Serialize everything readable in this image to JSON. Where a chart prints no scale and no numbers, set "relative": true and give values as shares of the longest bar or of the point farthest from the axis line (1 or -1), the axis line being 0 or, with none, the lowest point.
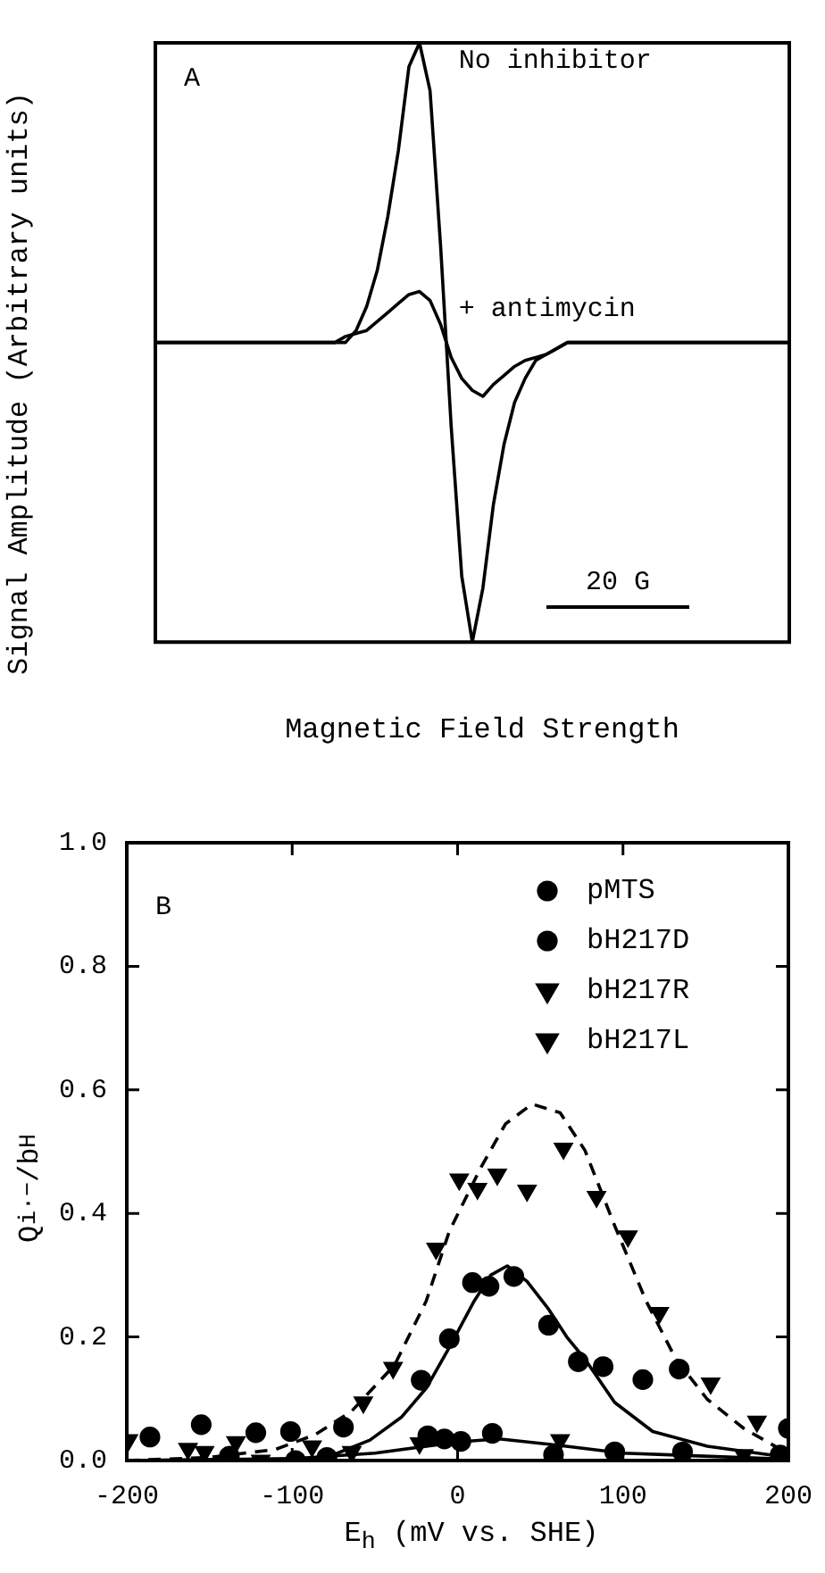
{
  "chart_data": [
    {
      "type": "line",
      "title": "A",
      "xlabel": "Magnetic Field Strength",
      "ylabel": "Signal Amplitude (Arbitrary units)",
      "relative": true,
      "marker": "none",
      "line_style": "solid",
      "annotations": [
        "20 G"
      ],
      "categories": [
        null,
        null,
        null,
        null,
        null,
        null,
        null,
        null,
        null,
        null,
        null,
        null,
        null,
        null,
        null,
        null,
        null,
        null,
        null,
        null,
        null,
        null,
        null,
        null,
        null,
        null,
        null,
        null,
        null,
        null,
        null,
        null,
        null,
        null,
        null,
        null,
        null,
        null,
        null,
        null,
        null,
        null,
        null,
        null,
        null,
        null,
        null,
        null,
        null,
        null,
        null,
        null,
        null,
        null,
        null,
        null,
        null,
        null,
        null,
        null,
        null
      ],
      "series": [
        {
          "name": "No inhibitor",
          "color": "#000000",
          "values": [
            0.5,
            0.5,
            0.5,
            0.5,
            0.5,
            0.5,
            0.5,
            0.5,
            0.5,
            0.5,
            0.5,
            0.5,
            0.5,
            0.5,
            0.5,
            0.5,
            0.5,
            0.5,
            0.5,
            0.52,
            0.56,
            0.62,
            0.71,
            0.82,
            0.96,
            1.0,
            0.92,
            0.66,
            0.36,
            0.11,
            0.0,
            0.09,
            0.23,
            0.33,
            0.4,
            0.44,
            0.47,
            0.48,
            0.49,
            0.5,
            0.5,
            0.5,
            0.5,
            0.5,
            0.5,
            0.5,
            0.5,
            0.5,
            0.5,
            0.5,
            0.5,
            0.5,
            0.5,
            0.5,
            0.5,
            0.5,
            0.5,
            0.5,
            0.5,
            0.5,
            0.5
          ]
        },
        {
          "name": "+ antimycin",
          "color": "#000000",
          "values": [
            0.5,
            0.5,
            0.5,
            0.5,
            0.5,
            0.5,
            0.5,
            0.5,
            0.5,
            0.5,
            0.5,
            0.5,
            0.5,
            0.5,
            0.5,
            0.5,
            0.5,
            0.5,
            0.51,
            0.515,
            0.52,
            0.535,
            0.55,
            0.565,
            0.58,
            0.585,
            0.57,
            0.53,
            0.475,
            0.44,
            0.42,
            0.41,
            0.43,
            0.445,
            0.46,
            0.47,
            0.475,
            0.48,
            0.49,
            0.5,
            0.5,
            0.5,
            0.5,
            0.5,
            0.5,
            0.5,
            0.5,
            0.5,
            0.5,
            0.5,
            0.5,
            0.5,
            0.5,
            0.5,
            0.5,
            0.5,
            0.5,
            0.5,
            0.5,
            0.5,
            0.5
          ]
        }
      ]
    },
    {
      "type": "scatter",
      "title": "B",
      "xlabel": "E$_{h}$ (mV vs. SHE)",
      "ylabel": "Q$_{i}$$^{·−}$/b$_{H}$",
      "legend": "top right",
      "xlim": [
        -200,
        200
      ],
      "xticks": [
        -200,
        -100,
        0,
        100,
        200
      ],
      "ylim": [
        0,
        1
      ],
      "yticks": [
        {
          "value": 0,
          "label": "0.0"
        },
        0.2,
        0.4,
        0.6,
        0.8,
        {
          "value": 1,
          "label": "1.0"
        }
      ],
      "series": [
        {
          "name": "pMTS",
          "color": "#000000",
          "marker": "circle",
          "x": [
            -155,
            -122,
            -101,
            -69,
            -22,
            -5,
            9,
            19,
            34,
            55,
            73,
            88,
            112,
            134,
            200
          ],
          "values": [
            0.058,
            0.045,
            0.047,
            0.054,
            0.13,
            0.197,
            0.288,
            0.282,
            0.298,
            0.219,
            0.16,
            0.152,
            0.131,
            0.148,
            0.052
          ]
        },
        {
          "name": "bH217D",
          "color": "#000000",
          "marker": "circle",
          "x": [
            -186,
            -138,
            -98,
            -79,
            -18,
            -8,
            2,
            21,
            58,
            95,
            136,
            195
          ],
          "values": [
            0.038,
            0.007,
            0,
            0.005,
            0.04,
            0.035,
            0.031,
            0.044,
            0.009,
            0.014,
            0.014,
            0.009
          ]
        },
        {
          "name": "bH217R",
          "color": "#000000",
          "marker": "triangle",
          "x": [
            -163,
            -153,
            -88,
            -57,
            -39,
            -13,
            1,
            12,
            24,
            42,
            64,
            84,
            103,
            122,
            153,
            181
          ],
          "values": [
            0.019,
            0.014,
            0.023,
            0.094,
            0.15,
            0.343,
            0.455,
            0.44,
            0.463,
            0.437,
            0.505,
            0.427,
            0.363,
            0.239,
            0.125,
            0.063
          ]
        },
        {
          "name": "bH217L",
          "color": "#000000",
          "marker": "triangle",
          "x": [
            -199,
            -134,
            -119,
            -64,
            -23,
            23,
            62,
            92,
            173
          ],
          "values": [
            0.033,
            0.03,
            0,
            0.014,
            0.028,
            null,
            0.033,
            null,
            0.009
          ]
        },
        {
          "type": "line",
          "color": "#000000",
          "marker": "none",
          "line_style": "solid",
          "x": [
            -200,
            -100,
            -79,
            -53,
            -34,
            -19,
            -5,
            10,
            20,
            30,
            42,
            55,
            66,
            77,
            95,
            118,
            151,
            200
          ],
          "values": [
            0,
            0.002,
            0.005,
            0.033,
            0.07,
            0.117,
            0.183,
            0.258,
            0.3,
            0.315,
            0.29,
            0.245,
            0.2,
            0.164,
            0.094,
            0.047,
            0.023,
            0.005
          ]
        },
        {
          "type": "line",
          "color": "#000000",
          "marker": "none",
          "line_style": "dashed",
          "x": [
            -200,
            -150,
            -110,
            -86,
            -64,
            -38,
            -19,
            -5,
            14,
            29,
            45,
            62,
            77,
            95,
            114,
            132,
            151,
            173,
            192,
            200
          ],
          "values": [
            0.0,
            0.005,
            0.018,
            0.042,
            0.08,
            0.155,
            0.258,
            0.371,
            0.474,
            0.545,
            0.577,
            0.563,
            0.502,
            0.38,
            0.258,
            0.164,
            0.099,
            0.052,
            0.023,
            0.009
          ]
        },
        {
          "type": "line",
          "color": "#000000",
          "marker": "none",
          "line_style": "solid",
          "x": [
            -200,
            -100,
            -50,
            0,
            25,
            60,
            100,
            200
          ],
          "values": [
            0,
            0.003,
            0.012,
            0.03,
            0.035,
            0.025,
            0.012,
            0.002
          ]
        }
      ]
    }
  ]
}
